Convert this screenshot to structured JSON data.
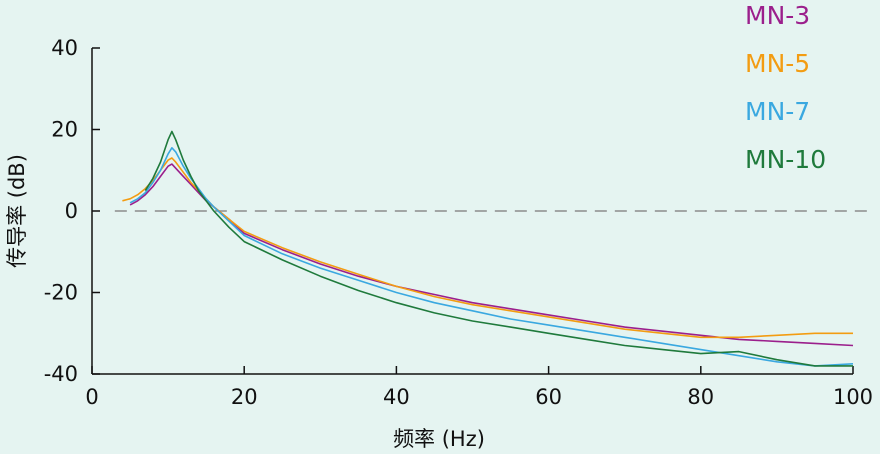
{
  "chart_data": {
    "type": "line",
    "title": "",
    "xlabel": "频率 (Hz)",
    "ylabel": "传导率 (dB)",
    "xlim": [
      0,
      100
    ],
    "ylim": [
      -40,
      40
    ],
    "xticks": [
      0,
      20,
      40,
      60,
      80,
      100
    ],
    "yticks": [
      -40,
      -20,
      0,
      20,
      40
    ],
    "xtick_labels": [
      "0",
      "20",
      "40",
      "60",
      "80",
      "100"
    ],
    "ytick_labels": [
      "-40",
      "-20",
      "0",
      "20",
      "40"
    ],
    "grid": false,
    "legend": "top-right",
    "reference_line": {
      "y": 0,
      "style": "dashed"
    },
    "series": [
      {
        "name": "MN-3",
        "color": "#9b1f8c",
        "x": [
          5,
          6,
          7,
          8,
          9,
          10,
          10.5,
          11,
          12,
          13,
          14,
          15,
          16,
          18,
          20,
          25,
          30,
          35,
          40,
          45,
          50,
          55,
          60,
          65,
          70,
          75,
          80,
          85,
          90,
          95,
          100
        ],
        "y": [
          1.5,
          2.5,
          4,
          6,
          8.5,
          11,
          11.5,
          10.5,
          8.5,
          6.5,
          4.5,
          2.5,
          1,
          -2,
          -5.5,
          -9.5,
          -13,
          -16,
          -18.5,
          -20.5,
          -22.5,
          -24,
          -25.5,
          -27,
          -28.5,
          -29.5,
          -30.5,
          -31.5,
          -32,
          -32.5,
          -33
        ]
      },
      {
        "name": "MN-5",
        "color": "#f39c12",
        "x": [
          4,
          5,
          6,
          7,
          8,
          9,
          10,
          10.5,
          11,
          12,
          13,
          14,
          15,
          16,
          18,
          20,
          25,
          30,
          35,
          40,
          45,
          50,
          55,
          60,
          65,
          70,
          75,
          80,
          85,
          90,
          95,
          100
        ],
        "y": [
          2.5,
          3,
          4,
          5.5,
          7.5,
          10,
          12.5,
          13,
          12,
          9.5,
          7,
          5,
          3,
          1,
          -2,
          -5,
          -9,
          -12.5,
          -15.5,
          -18.5,
          -21,
          -23,
          -24.5,
          -26,
          -27.5,
          -29,
          -30,
          -31,
          -31,
          -30.5,
          -30,
          -30
        ]
      },
      {
        "name": "MN-7",
        "color": "#3aa8e0",
        "x": [
          5,
          6,
          7,
          8,
          9,
          10,
          10.5,
          11,
          12,
          13,
          14,
          15,
          16,
          18,
          20,
          25,
          30,
          35,
          40,
          45,
          50,
          55,
          60,
          65,
          70,
          75,
          80,
          85,
          90,
          95,
          100
        ],
        "y": [
          2,
          3,
          4.5,
          7,
          10,
          14,
          15.5,
          14.5,
          11,
          8,
          5.5,
          3,
          1,
          -2.5,
          -6,
          -10.5,
          -14,
          -17,
          -20,
          -22.5,
          -24.5,
          -26.5,
          -28,
          -29.5,
          -31,
          -32.5,
          -34,
          -35.5,
          -37,
          -38,
          -37.5
        ]
      },
      {
        "name": "MN-10",
        "color": "#1f7a3c",
        "x": [
          7,
          8,
          9,
          10,
          10.5,
          11,
          12,
          13,
          14,
          15,
          16,
          18,
          20,
          25,
          30,
          35,
          40,
          45,
          50,
          55,
          60,
          65,
          70,
          75,
          80,
          85,
          90,
          95,
          100
        ],
        "y": [
          5,
          8,
          12,
          17.5,
          19.5,
          17.5,
          12.5,
          8.5,
          5,
          2.5,
          0,
          -4,
          -7.5,
          -12,
          -16,
          -19.5,
          -22.5,
          -25,
          -27,
          -28.5,
          -30,
          -31.5,
          -33,
          -34,
          -35,
          -34.5,
          -36.5,
          -38,
          -38
        ]
      }
    ]
  }
}
